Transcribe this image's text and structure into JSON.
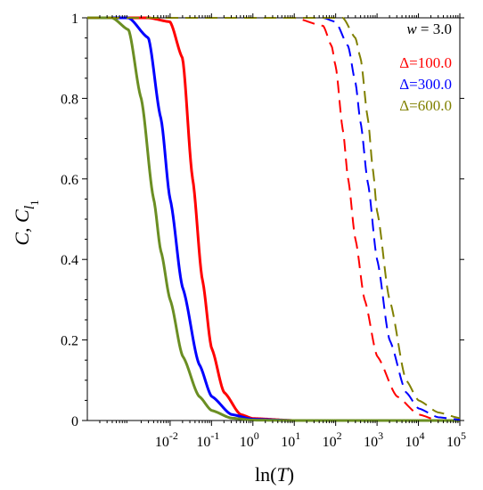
{
  "chart_data": {
    "type": "line",
    "xlabel_func": "ln",
    "xlabel_var": "T",
    "ylabel_main": "C, C",
    "ylabel_sub": "l",
    "ylabel_subsub": "1",
    "x_scale": "log",
    "xlim": [
      0.0001,
      100000
    ],
    "ylim": [
      0,
      1
    ],
    "x_ticks": [
      {
        "exp": "-2",
        "value": 0.01
      },
      {
        "exp": "-1",
        "value": 0.1
      },
      {
        "exp": "0",
        "value": 1
      },
      {
        "exp": "1",
        "value": 10
      },
      {
        "exp": "2",
        "value": 100
      },
      {
        "exp": "3",
        "value": 1000
      },
      {
        "exp": "4",
        "value": 10000
      },
      {
        "exp": "5",
        "value": 100000
      }
    ],
    "x_tick_base": "10",
    "y_ticks": [
      {
        "label": "0",
        "value": 0
      },
      {
        "label": "0.2",
        "value": 0.2
      },
      {
        "label": "0.4",
        "value": 0.4
      },
      {
        "label": "0.6",
        "value": 0.6
      },
      {
        "label": "0.8",
        "value": 0.8
      },
      {
        "label": "1",
        "value": 1
      }
    ],
    "grid": false,
    "legend_position": "top-right",
    "annotation": {
      "var": "w",
      "text": " = 3.0"
    },
    "legend": [
      {
        "label": "Δ=100.0",
        "color": "#ff0000"
      },
      {
        "label": "Δ=300.0",
        "color": "#0000ff"
      },
      {
        "label": "Δ=600.0",
        "color": "#808000"
      }
    ],
    "series": [
      {
        "style": "solid",
        "color": "#ff0000",
        "x": [
          0.0001,
          0.003,
          0.01,
          0.02,
          0.035,
          0.06,
          0.1,
          0.2,
          0.5,
          1,
          10,
          100000
        ],
        "y": [
          1,
          1,
          0.99,
          0.9,
          0.6,
          0.35,
          0.18,
          0.07,
          0.015,
          0.005,
          0,
          0
        ]
      },
      {
        "style": "solid",
        "color": "#0000ff",
        "x": [
          0.0001,
          0.001,
          0.003,
          0.006,
          0.01,
          0.02,
          0.05,
          0.1,
          0.3,
          1,
          10,
          100000
        ],
        "y": [
          1,
          1,
          0.95,
          0.75,
          0.55,
          0.33,
          0.14,
          0.06,
          0.015,
          0.003,
          0,
          0
        ]
      },
      {
        "style": "solid",
        "color": "#6b8e23",
        "x": [
          0.0001,
          0.0004,
          0.001,
          0.002,
          0.004,
          0.006,
          0.01,
          0.02,
          0.05,
          0.1,
          0.3,
          1,
          10,
          100000
        ],
        "y": [
          1,
          1,
          0.97,
          0.8,
          0.55,
          0.42,
          0.3,
          0.16,
          0.06,
          0.025,
          0.006,
          0.001,
          0,
          0
        ]
      },
      {
        "style": "dashed",
        "color": "#ff0000",
        "x": [
          0.0001,
          10,
          50,
          80,
          100,
          150,
          200,
          300,
          500,
          1000,
          3000,
          10000,
          30000
        ],
        "y": [
          1,
          1,
          0.98,
          0.93,
          0.88,
          0.72,
          0.6,
          0.45,
          0.3,
          0.16,
          0.06,
          0.015,
          0
        ]
      },
      {
        "style": "dashed",
        "color": "#0000ff",
        "x": [
          0.0001,
          50,
          100,
          200,
          300,
          400,
          600,
          1000,
          2000,
          5000,
          10000,
          30000,
          100000
        ],
        "y": [
          1,
          1,
          0.99,
          0.93,
          0.84,
          0.74,
          0.59,
          0.4,
          0.2,
          0.07,
          0.03,
          0.008,
          0.002
        ]
      },
      {
        "style": "dashed",
        "color": "#808000",
        "x": [
          0.0001,
          150,
          300,
          400,
          600,
          800,
          1000,
          2000,
          5000,
          10000,
          30000,
          100000
        ],
        "y": [
          1,
          1,
          0.95,
          0.9,
          0.75,
          0.62,
          0.52,
          0.3,
          0.1,
          0.05,
          0.02,
          0.006
        ]
      }
    ]
  }
}
